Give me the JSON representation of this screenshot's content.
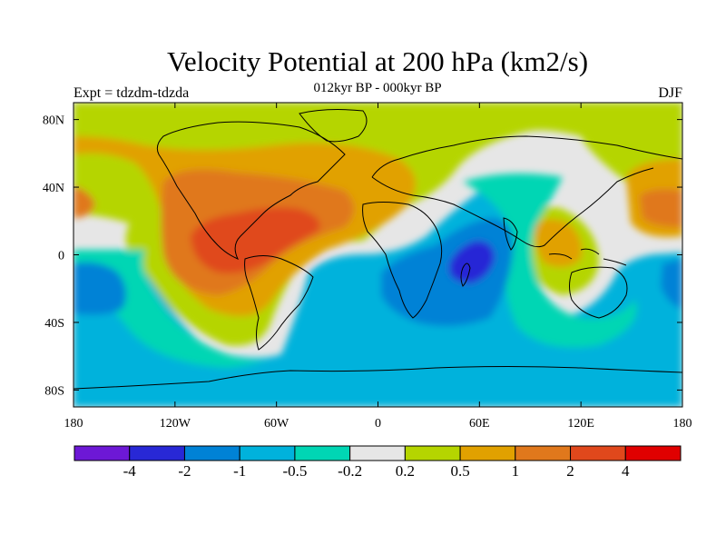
{
  "title": "Velocity Potential at 200 hPa (km2/s)",
  "subtitle": "012kyr BP - 000kyr BP",
  "left_label": "Expt = tdzdm-tdzda",
  "right_label": "DJF",
  "map": {
    "type": "map",
    "projection": "cylindrical-equidistant",
    "lon_range": [
      -180,
      180
    ],
    "lat_range": [
      -90,
      90
    ],
    "lon_ticks": [
      {
        "label": "180",
        "lon": -180
      },
      {
        "label": "120W",
        "lon": -120
      },
      {
        "label": "60W",
        "lon": -60
      },
      {
        "label": "0",
        "lon": 0
      },
      {
        "label": "60E",
        "lon": 60
      },
      {
        "label": "120E",
        "lon": 120
      },
      {
        "label": "180",
        "lon": 180
      }
    ],
    "lat_ticks": [
      {
        "label": "80N",
        "lat": 80
      },
      {
        "label": "40N",
        "lat": 40
      },
      {
        "label": "0",
        "lat": 0
      },
      {
        "label": "40S",
        "lat": -40
      },
      {
        "label": "80S",
        "lat": -80
      }
    ],
    "field_regions": [
      {
        "name": "high-latitude-north",
        "level": 6,
        "color": "#b5d500",
        "lon": 0,
        "lat": 65
      },
      {
        "name": "east-pacific-positive",
        "level": 7,
        "color": "#e1a100",
        "lon": -110,
        "lat": 15
      },
      {
        "name": "americas-positive",
        "level": 8,
        "color": "#e0781c",
        "lon": -90,
        "lat": 25
      },
      {
        "name": "central-america-max",
        "level": 9,
        "color": "#e0481c",
        "lon": -90,
        "lat": 5
      },
      {
        "name": "west-pacific-positive",
        "level": 8,
        "color": "#e0781c",
        "lon": 175,
        "lat": 30
      },
      {
        "name": "maritime-continent-positive",
        "level": 7,
        "color": "#e1a100",
        "lon": 100,
        "lat": 8
      },
      {
        "name": "southern-ocean-negative",
        "level": 3,
        "color": "#00b2dc",
        "lon": 0,
        "lat": -50
      },
      {
        "name": "south-pacific-negative",
        "level": 2,
        "color": "#0082d6",
        "lon": -165,
        "lat": -20
      },
      {
        "name": "indian-ocean-negative",
        "level": 2,
        "color": "#0082d6",
        "lon": 40,
        "lat": -15
      },
      {
        "name": "madagascar-min",
        "level": 1,
        "color": "#2828d6",
        "lon": 45,
        "lat": -5
      }
    ]
  },
  "colorbar": {
    "colors": [
      "#6d18d6",
      "#2828d6",
      "#0082d6",
      "#00b2dc",
      "#00d6b4",
      "#e6e6e6",
      "#b5d500",
      "#e1a100",
      "#e0781c",
      "#e0481c",
      "#e00000"
    ],
    "labels": [
      "-4",
      "-2",
      "-1",
      "-0.5",
      "-0.2",
      "0.2",
      "0.5",
      "1",
      "2",
      "4"
    ]
  }
}
